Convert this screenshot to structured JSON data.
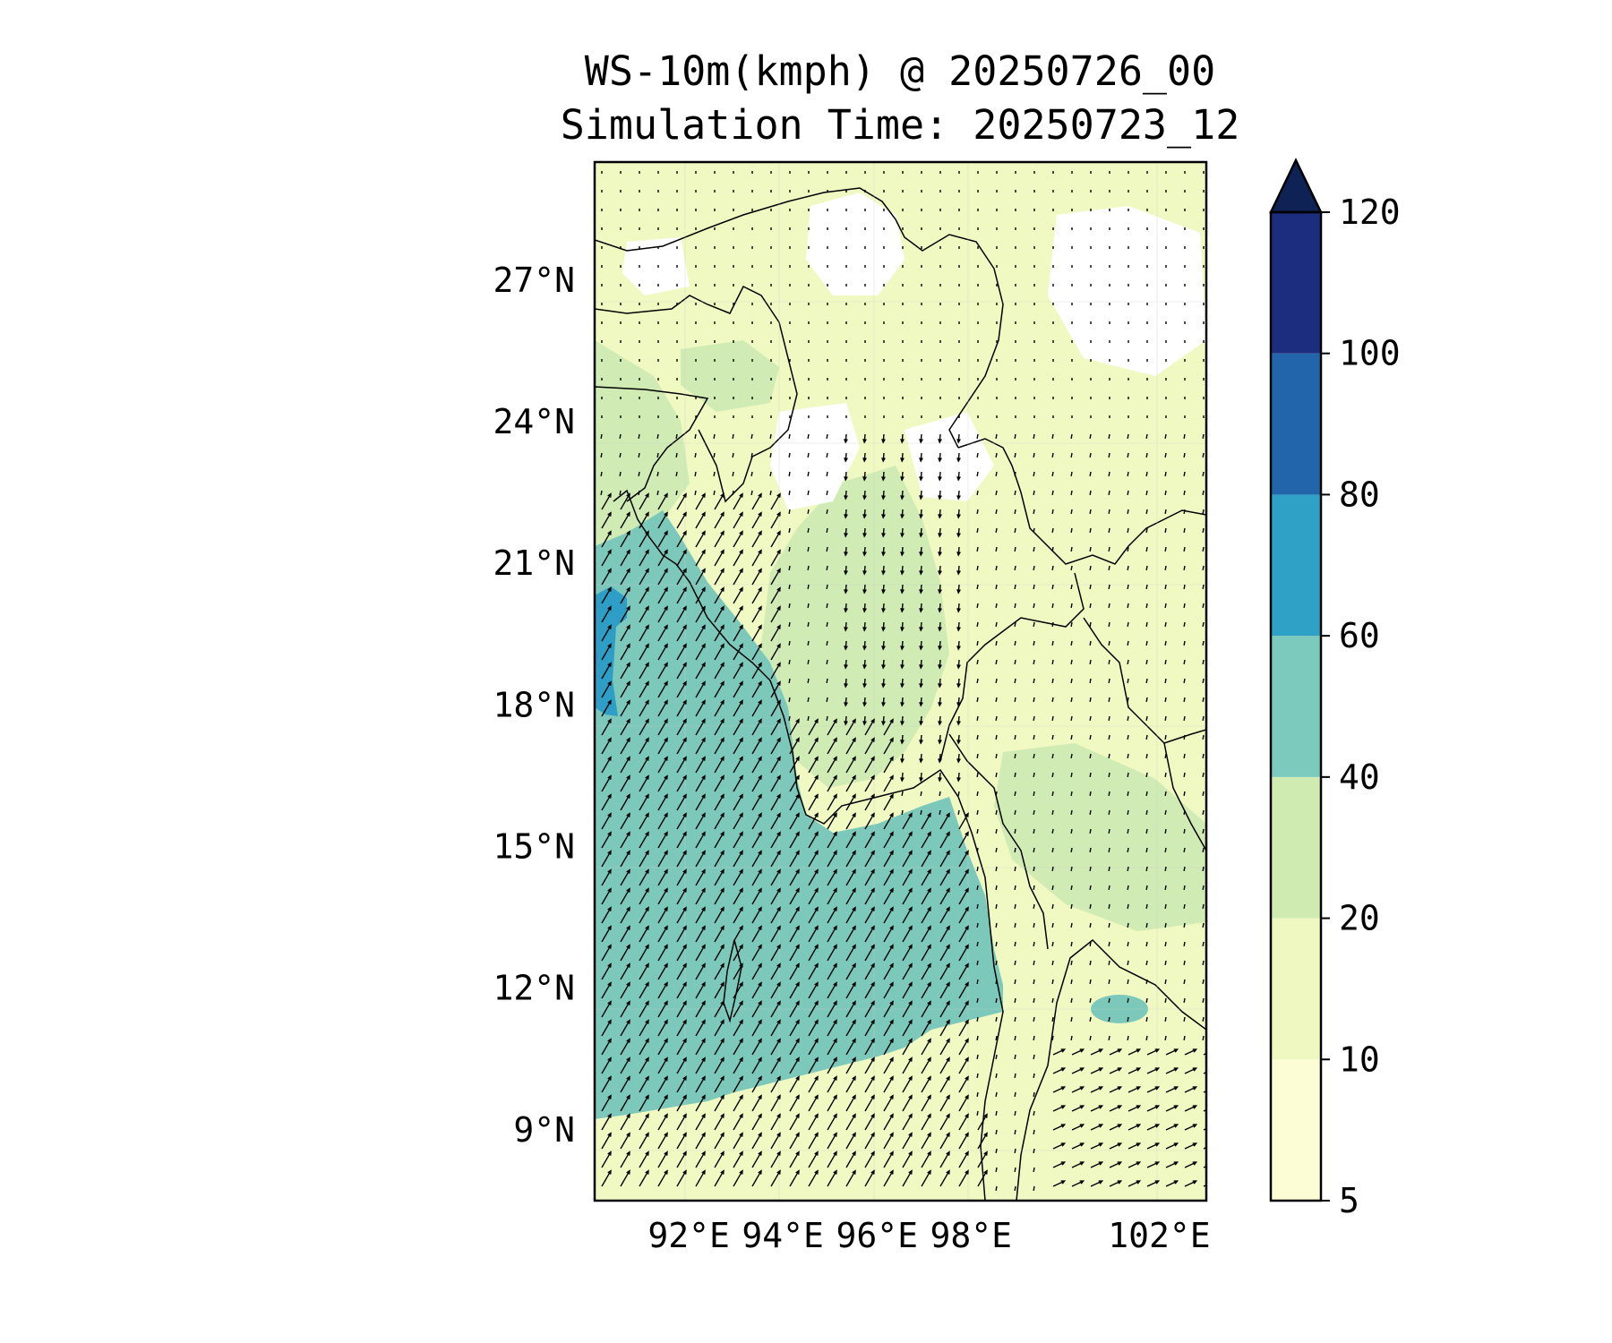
{
  "title": {
    "line1": "WS-10m(kmph) @ 20250726_00",
    "line2": "Simulation Time: 20250723_12"
  },
  "map": {
    "lon_range": [
      90.0,
      103.0
    ],
    "lat_range": [
      7.5,
      29.5
    ],
    "lat_ticks": [
      {
        "value": 27,
        "label": "27°N"
      },
      {
        "value": 24,
        "label": "24°N"
      },
      {
        "value": 21,
        "label": "21°N"
      },
      {
        "value": 18,
        "label": "18°N"
      },
      {
        "value": 15,
        "label": "15°N"
      },
      {
        "value": 12,
        "label": "12°N"
      },
      {
        "value": 9,
        "label": "9°N"
      }
    ],
    "lon_ticks": [
      {
        "value": 92,
        "label": "92°E"
      },
      {
        "value": 94,
        "label": "94°E"
      },
      {
        "value": 96,
        "label": "96°E"
      },
      {
        "value": 98,
        "label": "98°E"
      },
      {
        "value": 102,
        "label": "102°E"
      }
    ],
    "colors": {
      "land_low": "#f1f9c2",
      "land_mid": "#d0ebb3",
      "sea": "#7cc9bc",
      "sea_high": "#2f9ec7",
      "calm": "#ffffff",
      "border": "#000000",
      "arrow": "#000000"
    }
  },
  "colorbar": {
    "levels": [
      {
        "from": 5,
        "to": 10,
        "color": "#fcfdd5",
        "label": "5"
      },
      {
        "from": 10,
        "to": 20,
        "color": "#eef8c0",
        "label": "10"
      },
      {
        "from": 20,
        "to": 40,
        "color": "#cfebb2",
        "label": "20"
      },
      {
        "from": 40,
        "to": 60,
        "color": "#7cc9bd",
        "label": "40"
      },
      {
        "from": 60,
        "to": 80,
        "color": "#2fa1c6",
        "label": "60"
      },
      {
        "from": 80,
        "to": 100,
        "color": "#2265ab",
        "label": "80"
      },
      {
        "from": 100,
        "to": 120,
        "color": "#1c2c7e",
        "label": "100"
      }
    ],
    "top_label": "120",
    "extend_color": "#0f2256"
  }
}
